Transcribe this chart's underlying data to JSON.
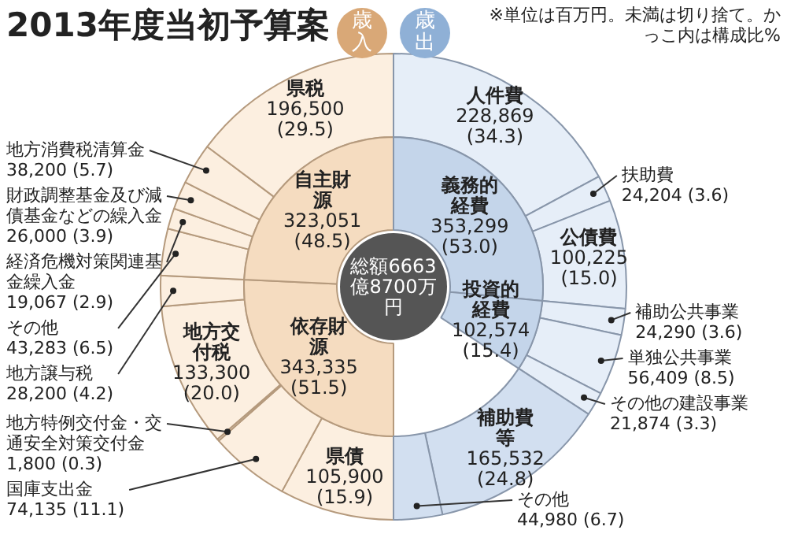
{
  "chart_data": [
    {
      "type": "donut",
      "title": "2013年度当初予算案",
      "subtitle": "歳入",
      "annotations": [
        "※単位は百万円。未満は切り捨て。かっこ内は構成比%"
      ],
      "categories": [
        "県債",
        "国庫支出金",
        "地方特例交付金・交通安全対策交付金",
        "地方交付税",
        "地方譲与税",
        "その他",
        "経済危機対策関連基金繰入金",
        "財政調整基金及び減債基金などの繰入金",
        "地方消費税清算金",
        "県税"
      ],
      "values": [
        105900,
        74135,
        1800,
        133300,
        28200,
        43283,
        19067,
        26000,
        38200,
        196500
      ],
      "colors": [
        "#fcefe0",
        "#fcefe0",
        "#fcefe0",
        "#fcefe0",
        "#fcefe0",
        "#fcefe0",
        "#fcefe0",
        "#fcefe0",
        "#fcefe0",
        "#fcefe0"
      ],
      "value_labels": [
        "105,900 (15.9)",
        "74,135 (11.1)",
        "1,800 (0.3)",
        "133,300 (20.0)",
        "28,200 (4.2)",
        "43,283 (6.5)",
        "19,067 (2.9)",
        "26,000 (3.9)",
        "38,200 (5.7)",
        "196,500 (29.5)"
      ]
    },
    {
      "type": "donut",
      "annotations": [
        "総額6663億8700万円"
      ],
      "categories": [
        "依存財源",
        "自主財源"
      ],
      "values": [
        343335,
        323051
      ],
      "colors": [
        "#f5dcc0",
        "#f5dcc0"
      ],
      "value_labels": [
        "343,335 (51.5)",
        "323,051 (48.5)"
      ]
    },
    {
      "type": "donut",
      "subtitle": "歳出",
      "categories": [
        "人件費",
        "扶助費",
        "公債費",
        "補助公共事業",
        "単独公共事業",
        "その他の建設事業",
        "補助費等",
        "その他"
      ],
      "values": [
        228869,
        24204,
        100225,
        24290,
        56409,
        21874,
        165532,
        44980
      ],
      "colors": [
        "#e6eef8",
        "#e6eef8",
        "#e6eef8",
        "#e6eef8",
        "#e6eef8",
        "#e6eef8",
        "#d2dff0",
        "#d2dff0"
      ],
      "value_labels": [
        "228,869 (34.3)",
        "24,204 (3.6)",
        "100,225 (15.0)",
        "24,290 (3.6)",
        "56,409 (8.5)",
        "21,874 (3.3)",
        "165,532 (24.8)",
        "44,980 (6.7)"
      ]
    },
    {
      "type": "donut",
      "categories": [
        "義務的経費",
        "投資的経費"
      ],
      "values": [
        353299,
        102574
      ],
      "colors": [
        "#c4d5ea",
        "#c4d5ea"
      ],
      "value_labels": [
        "353,299 (53.0)",
        "102,574 (15.4)"
      ]
    }
  ]
}
